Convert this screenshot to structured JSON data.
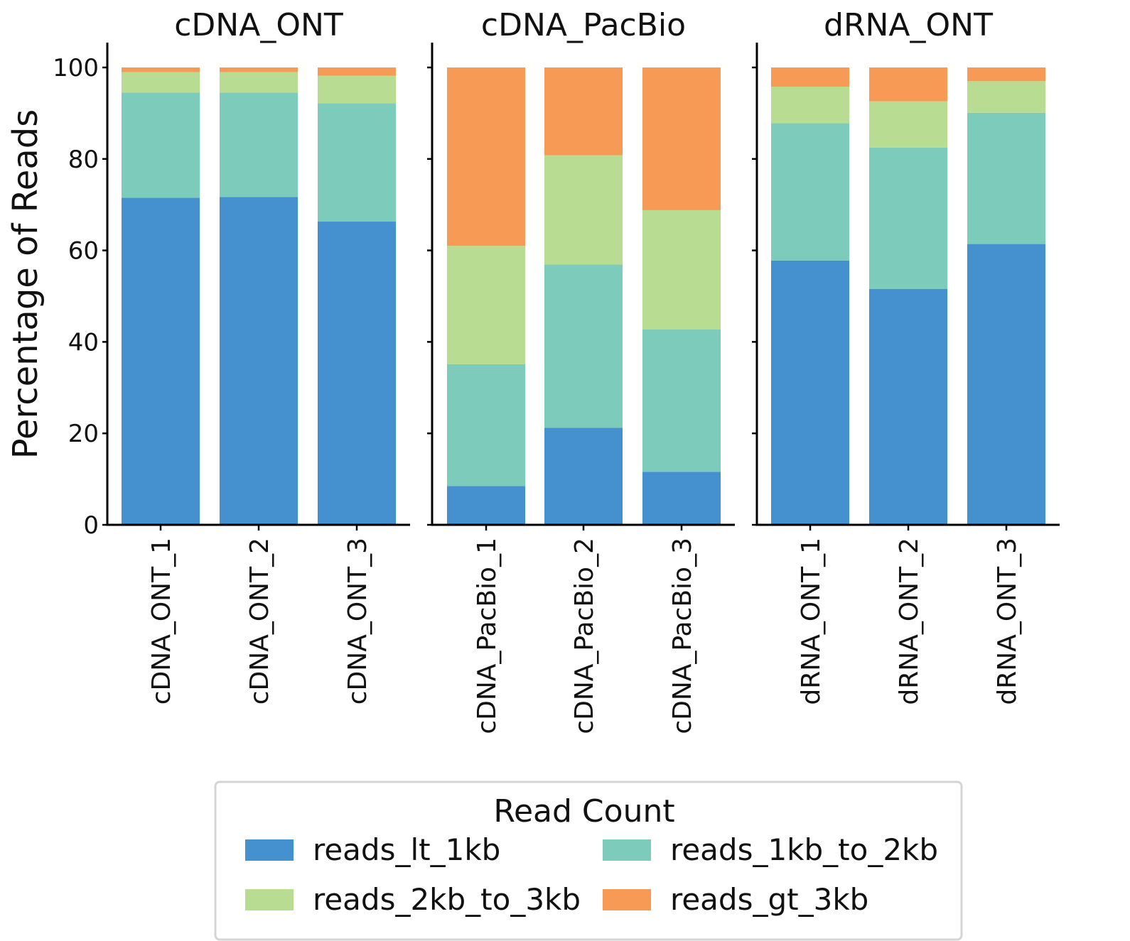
{
  "chart_data": {
    "type": "bar",
    "stacked": true,
    "ylabel": "Percentage of Reads",
    "ylim": [
      0,
      100
    ],
    "yticks": [
      "0",
      "20",
      "40",
      "60",
      "80",
      "100"
    ],
    "grid": false,
    "legend": {
      "title": "Read Count",
      "placement": "bottom-center",
      "entries": [
        "reads_lt_1kb",
        "reads_1kb_to_2kb",
        "reads_2kb_to_3kb",
        "reads_gt_3kb"
      ]
    },
    "series_colors": [
      "#4590ce",
      "#7dcbbb",
      "#b8dc91",
      "#f79a55"
    ],
    "panels": [
      {
        "title": "cDNA_ONT",
        "categories": [
          "cDNA_ONT_1",
          "cDNA_ONT_2",
          "cDNA_ONT_3"
        ],
        "series": [
          {
            "name": "reads_lt_1kb",
            "values": [
              71.5,
              71.7,
              66.3
            ]
          },
          {
            "name": "reads_1kb_to_2kb",
            "values": [
              23.0,
              22.8,
              25.9
            ]
          },
          {
            "name": "reads_2kb_to_3kb",
            "values": [
              4.5,
              4.5,
              6.0
            ]
          },
          {
            "name": "reads_gt_3kb",
            "values": [
              1.0,
              1.0,
              1.8
            ]
          }
        ]
      },
      {
        "title": "cDNA_PacBio",
        "categories": [
          "cDNA_PacBio_1",
          "cDNA_PacBio_2",
          "cDNA_PacBio_3"
        ],
        "series": [
          {
            "name": "reads_lt_1kb",
            "values": [
              8.5,
              21.2,
              11.6
            ]
          },
          {
            "name": "reads_1kb_to_2kb",
            "values": [
              26.6,
              35.7,
              31.1
            ]
          },
          {
            "name": "reads_2kb_to_3kb",
            "values": [
              25.9,
              23.9,
              26.1
            ]
          },
          {
            "name": "reads_gt_3kb",
            "values": [
              39.0,
              19.2,
              31.2
            ]
          }
        ]
      },
      {
        "title": "dRNA_ONT",
        "categories": [
          "dRNA_ONT_1",
          "dRNA_ONT_2",
          "dRNA_ONT_3"
        ],
        "series": [
          {
            "name": "reads_lt_1kb",
            "values": [
              57.8,
              51.6,
              61.4
            ]
          },
          {
            "name": "reads_1kb_to_2kb",
            "values": [
              30.0,
              30.9,
              28.7
            ]
          },
          {
            "name": "reads_2kb_to_3kb",
            "values": [
              8.0,
              10.1,
              6.9
            ]
          },
          {
            "name": "reads_gt_3kb",
            "values": [
              4.2,
              7.4,
              3.0
            ]
          }
        ]
      }
    ]
  }
}
